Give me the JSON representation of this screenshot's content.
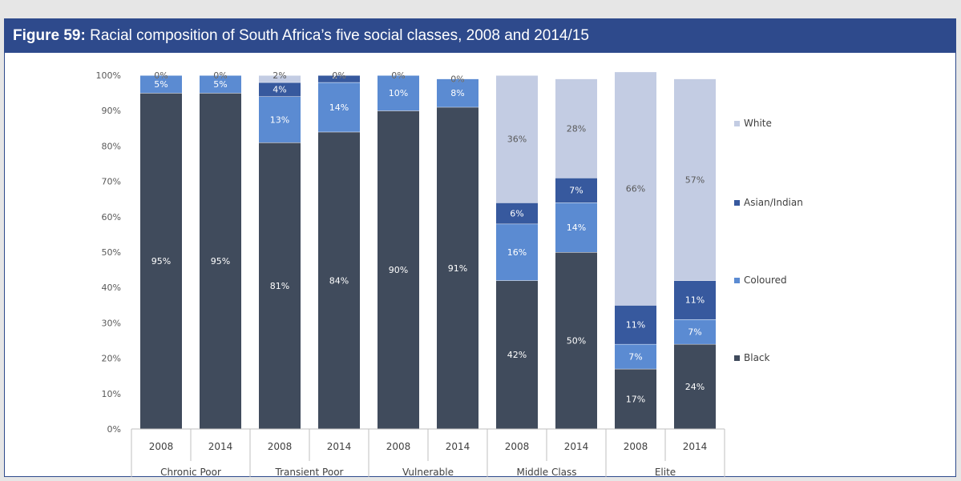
{
  "figure": {
    "label": "Figure 59:",
    "title": "Racial composition of South Africa’s five social classes, 2008 and 2014/15"
  },
  "colors": {
    "header_bg": "#2e4a8c",
    "Black": "#404b5c",
    "Coloured": "#5b8bd2",
    "Asian/Indian": "#37599e",
    "White": "#c3cce3"
  },
  "chart_data": {
    "type": "bar",
    "stacked": true,
    "categories": [
      {
        "group": "Chronic Poor",
        "year": "2008"
      },
      {
        "group": "Chronic Poor",
        "year": "2014"
      },
      {
        "group": "Transient Poor",
        "year": "2008"
      },
      {
        "group": "Transient Poor",
        "year": "2014"
      },
      {
        "group": "Vulnerable",
        "year": "2008"
      },
      {
        "group": "Vulnerable",
        "year": "2014"
      },
      {
        "group": "Middle Class",
        "year": "2008"
      },
      {
        "group": "Middle Class",
        "year": "2014"
      },
      {
        "group": "Elite",
        "year": "2008"
      },
      {
        "group": "Elite",
        "year": "2014"
      }
    ],
    "groups": [
      "Chronic Poor",
      "Transient Poor",
      "Vulnerable",
      "Middle Class",
      "Elite"
    ],
    "series": [
      {
        "name": "Black",
        "values": [
          95,
          95,
          81,
          84,
          90,
          91,
          42,
          50,
          17,
          24
        ],
        "labels": [
          "95%",
          "95%",
          "81%",
          "84%",
          "90%",
          "91%",
          "42%",
          "50%",
          "17%",
          "24%"
        ]
      },
      {
        "name": "Coloured",
        "values": [
          5,
          5,
          13,
          14,
          10,
          8,
          16,
          14,
          7,
          7
        ],
        "labels": [
          "5%",
          "5%",
          "13%",
          "14%",
          "10%",
          "8%",
          "16%",
          "14%",
          "7%",
          "7%"
        ]
      },
      {
        "name": "Asian/Indian",
        "values": [
          0,
          0,
          4,
          2,
          0,
          0,
          6,
          7,
          11,
          11
        ],
        "labels": [
          "0%",
          "0%",
          "4%",
          "2%",
          "0%",
          "0%",
          "6%",
          "7%",
          "11%",
          "11%"
        ]
      },
      {
        "name": "White",
        "values": [
          0,
          0,
          2,
          0,
          0,
          0,
          36,
          28,
          66,
          57
        ],
        "labels": [
          "0%",
          "0%",
          "2%",
          "0%",
          "0%",
          "0%",
          "36%",
          "28%",
          "66%",
          "57%"
        ]
      }
    ],
    "legend_order": [
      "White",
      "Asian/Indian",
      "Coloured",
      "Black"
    ],
    "legend_position": "right",
    "ylim": [
      0,
      100
    ],
    "yticks": [
      "0%",
      "10%",
      "20%",
      "30%",
      "40%",
      "50%",
      "60%",
      "70%",
      "80%",
      "90%",
      "100%"
    ],
    "grid": false
  }
}
